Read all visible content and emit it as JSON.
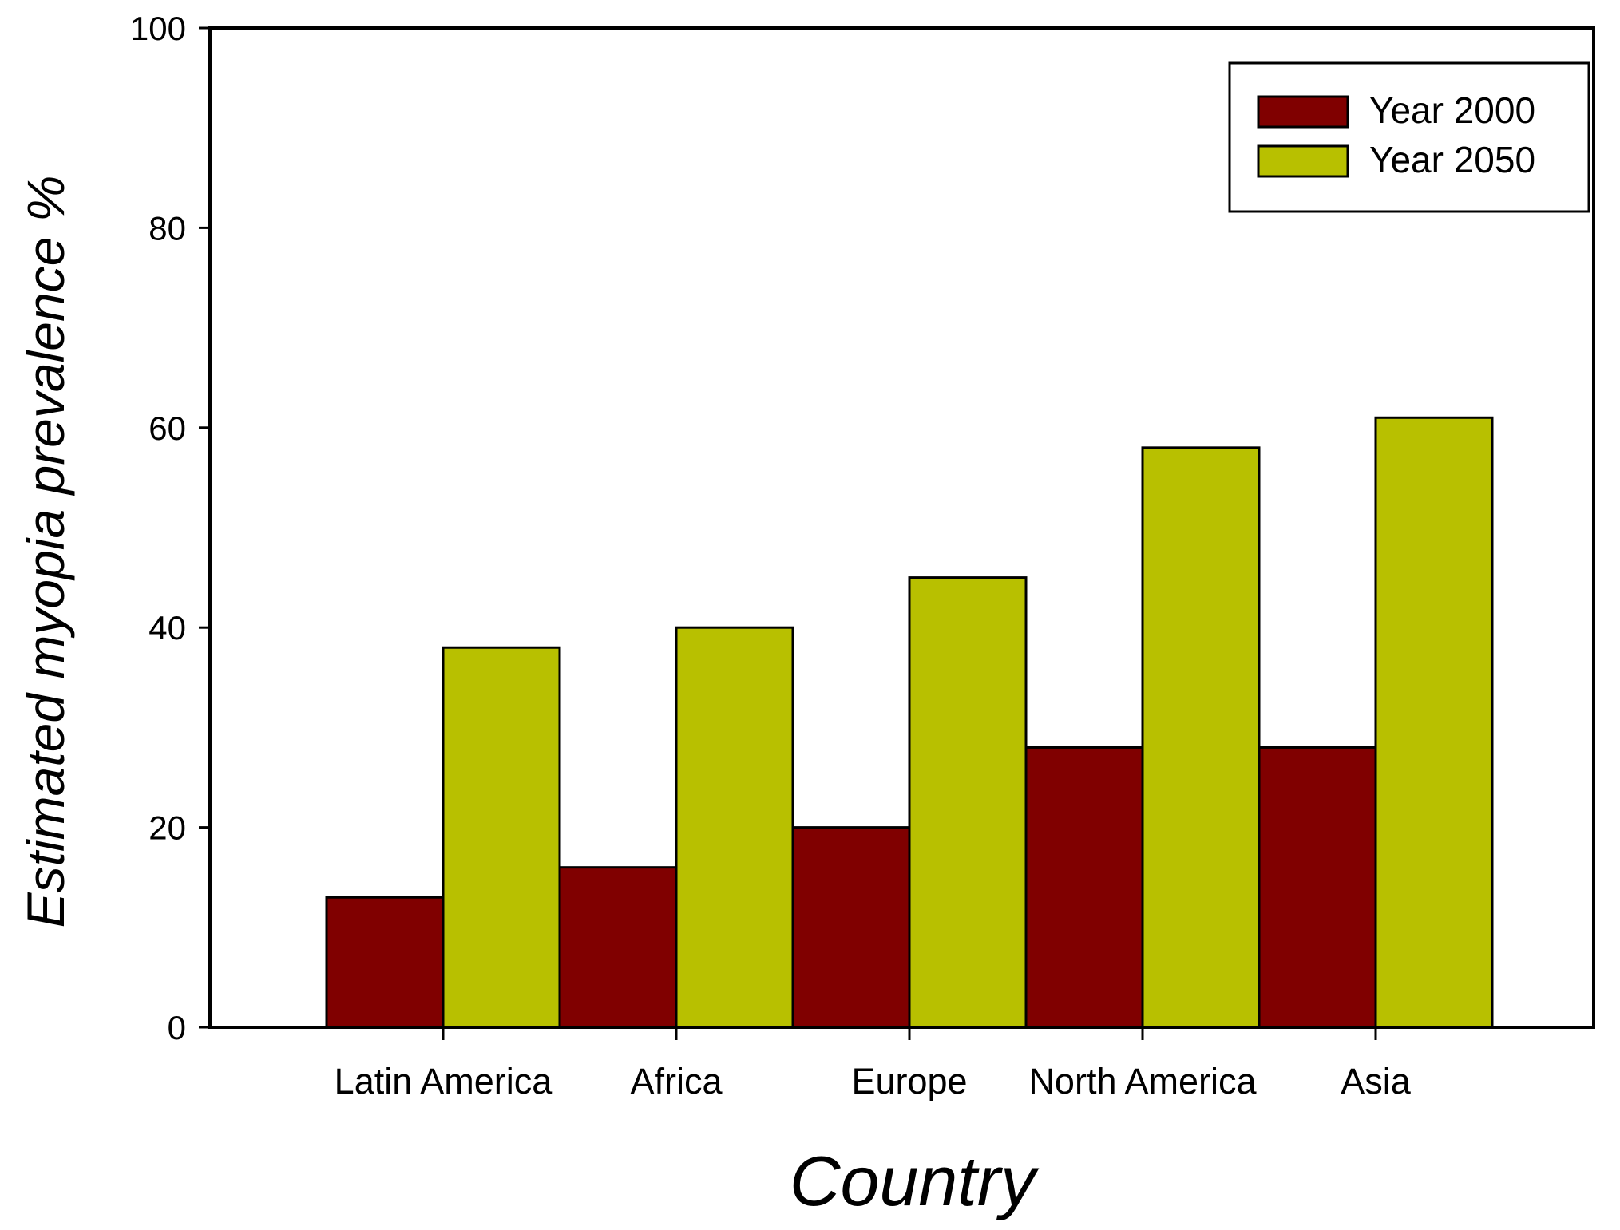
{
  "chart_data": {
    "type": "bar",
    "categories": [
      "Latin America",
      "Africa",
      "Europe",
      "North America",
      "Asia"
    ],
    "series": [
      {
        "name": "Year 2000",
        "values": [
          13,
          16,
          20,
          28,
          28
        ],
        "color": "#800000"
      },
      {
        "name": "Year 2050",
        "values": [
          38,
          40,
          45,
          58,
          61
        ],
        "color": "#B8C000"
      }
    ],
    "title": "",
    "xlabel": "Country",
    "ylabel": "Estimated myopia prevalence %",
    "ylim": [
      0,
      100
    ],
    "yticks": [
      0,
      20,
      40,
      60,
      80,
      100
    ],
    "grid": false,
    "legend_position": "top-right"
  }
}
